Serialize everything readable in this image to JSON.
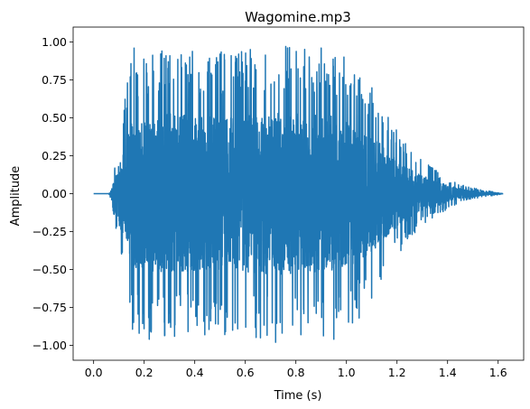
{
  "chart_data": {
    "type": "line",
    "title": "Wagomine.mp3",
    "xlabel": "Time (s)",
    "ylabel": "Amplitude",
    "xlim": [
      -0.081,
      1.701
    ],
    "ylim": [
      -1.098,
      1.098
    ],
    "xticks": [
      0.0,
      0.2,
      0.4,
      0.6,
      0.8,
      1.0,
      1.2,
      1.4,
      1.6
    ],
    "xtick_labels": [
      "0.0",
      "0.2",
      "0.4",
      "0.6",
      "0.8",
      "1.0",
      "1.2",
      "1.4",
      "1.6"
    ],
    "yticks": [
      -1.0,
      -0.75,
      -0.5,
      -0.25,
      0.0,
      0.25,
      0.5,
      0.75,
      1.0
    ],
    "ytick_labels": [
      "−1.00",
      "−0.75",
      "−0.50",
      "−0.25",
      "0.00",
      "0.25",
      "0.50",
      "0.75",
      "1.00"
    ],
    "grid": false,
    "series": [
      {
        "color": "#1f77b4",
        "duration": 1.62,
        "envelope": {
          "x": [
            0.0,
            0.06,
            0.07,
            0.09,
            0.12,
            0.15,
            0.2,
            0.3,
            0.45,
            0.6,
            0.75,
            0.9,
            1.0,
            1.1,
            1.15,
            1.2,
            1.25,
            1.3,
            1.35,
            1.4,
            1.45,
            1.5,
            1.55,
            1.6,
            1.62
          ],
          "y": [
            0.0,
            0.0,
            0.04,
            0.25,
            0.6,
            0.9,
            0.92,
            0.96,
            0.93,
            0.95,
            0.97,
            0.95,
            0.9,
            0.7,
            0.55,
            0.42,
            0.3,
            0.22,
            0.16,
            0.1,
            0.06,
            0.04,
            0.02,
            0.01,
            0.0
          ]
        },
        "peaks": [
          {
            "x": 0.16,
            "y": 0.96
          },
          {
            "x": 0.18,
            "y": -0.92
          },
          {
            "x": 0.22,
            "y": -0.96
          },
          {
            "x": 0.27,
            "y": 0.94
          },
          {
            "x": 0.32,
            "y": -0.94
          },
          {
            "x": 0.38,
            "y": 0.9
          },
          {
            "x": 0.44,
            "y": -0.93
          },
          {
            "x": 0.5,
            "y": 0.92
          },
          {
            "x": 0.55,
            "y": -0.9
          },
          {
            "x": 0.62,
            "y": 0.95
          },
          {
            "x": 0.66,
            "y": -0.95
          },
          {
            "x": 0.72,
            "y": -0.98
          },
          {
            "x": 0.76,
            "y": 0.97
          },
          {
            "x": 0.82,
            "y": -0.93
          },
          {
            "x": 0.9,
            "y": 0.96
          },
          {
            "x": 0.95,
            "y": -0.96
          },
          {
            "x": 0.99,
            "y": 0.9
          },
          {
            "x": 1.05,
            "y": -0.82
          }
        ]
      }
    ]
  }
}
